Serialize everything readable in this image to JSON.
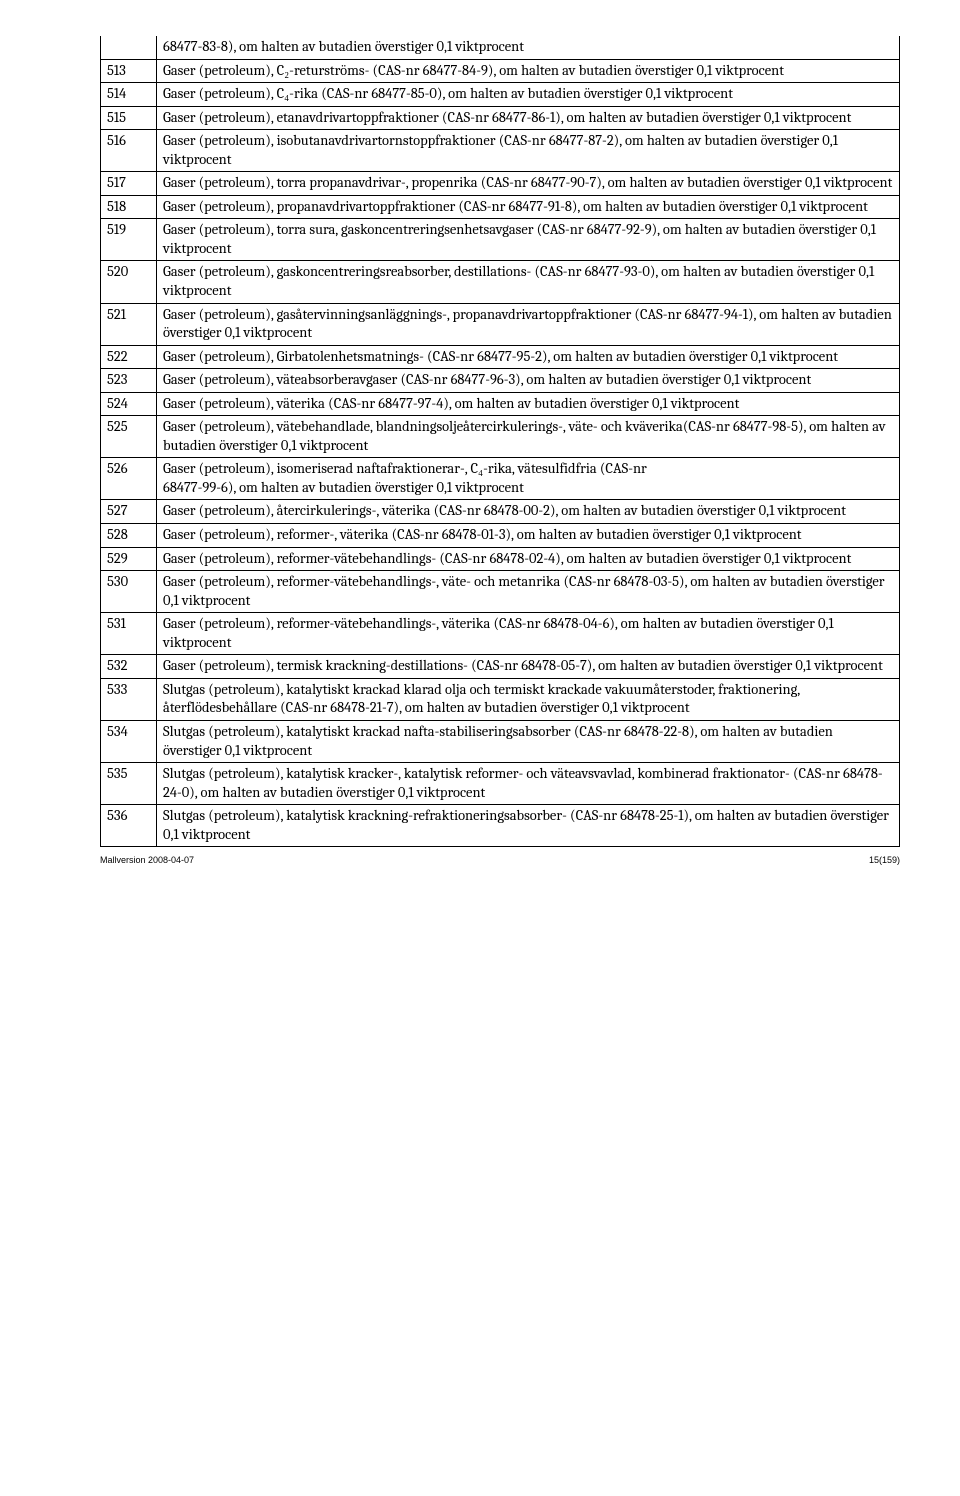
{
  "orphan": {
    "text": "68477-83-8), om halten av butadien överstiger 0,1 viktprocent"
  },
  "rows": [
    {
      "num": "513",
      "text": "Gaser (petroleum), C₂-returströms- (CAS-nr 68477-84-9), om halten av butadien överstiger 0,1 viktprocent"
    },
    {
      "num": "514",
      "text": "Gaser (petroleum), C₄-rika (CAS-nr 68477-85-0), om halten av butadien överstiger 0,1 viktprocent"
    },
    {
      "num": "515",
      "text": "Gaser (petroleum), etanavdrivartoppfraktioner (CAS-nr 68477-86-1), om halten av butadien överstiger 0,1 viktprocent"
    },
    {
      "num": "516",
      "text": "Gaser (petroleum), isobutanavdrivartornstoppfraktioner (CAS-nr 68477-87-2), om halten av butadien överstiger 0,1 viktprocent"
    },
    {
      "num": "517",
      "text": "Gaser (petroleum), torra propanavdrivar-, propenrika (CAS-nr 68477-90-7), om halten av butadien överstiger 0,1 viktprocent"
    },
    {
      "num": "518",
      "text": "Gaser (petroleum), propanavdrivartoppfraktioner (CAS-nr 68477-91-8), om halten av butadien överstiger 0,1 viktprocent"
    },
    {
      "num": "519",
      "text": "Gaser (petroleum), torra sura, gaskoncentreringsenhetsavgaser (CAS-nr 68477-92-9), om halten av butadien överstiger 0,1 viktprocent"
    },
    {
      "num": "520",
      "text": "Gaser (petroleum), gaskoncentreringsreabsorber, destillations- (CAS-nr 68477-93-0), om halten av butadien överstiger 0,1 viktprocent"
    },
    {
      "num": "521",
      "text": "Gaser (petroleum), gasåtervinningsanläggnings-, propanavdrivartoppfraktioner (CAS-nr 68477-94-1), om halten av butadien överstiger 0,1 viktprocent"
    },
    {
      "num": "522",
      "text": "Gaser (petroleum), Girbatolenhetsmatnings- (CAS-nr 68477-95-2), om halten av butadien överstiger 0,1 viktprocent"
    },
    {
      "num": "523",
      "text": "Gaser (petroleum), väteabsorberavgaser (CAS-nr 68477-96-3), om halten av butadien överstiger 0,1 viktprocent"
    },
    {
      "num": "524",
      "text": "Gaser (petroleum), väterika (CAS-nr 68477-97-4), om halten av butadien överstiger 0,1 viktprocent"
    },
    {
      "num": "525",
      "text": "Gaser (petroleum), vätebehandlade, blandningsoljeåtercirkulerings-, väte- och kväverika(CAS-nr 68477-98-5), om halten av butadien överstiger 0,1 viktprocent"
    },
    {
      "num": "526",
      "text": "Gaser (petroleum), isomeriserad naftafraktionerar-, C₄-rika, vätesulfidfria (CAS-nr\n68477-99-6), om halten av butadien överstiger 0,1 viktprocent"
    },
    {
      "num": "527",
      "text": "Gaser (petroleum), återcirkulerings-, väterika (CAS-nr 68478-00-2), om halten av butadien överstiger 0,1 viktprocent"
    },
    {
      "num": "528",
      "text": "Gaser (petroleum), reformer-, väterika (CAS-nr 68478-01-3), om halten av butadien överstiger 0,1 viktprocent"
    },
    {
      "num": "529",
      "text": "Gaser (petroleum), reformer-vätebehandlings- (CAS-nr 68478-02-4), om halten av butadien överstiger 0,1 viktprocent"
    },
    {
      "num": "530",
      "text": "Gaser (petroleum), reformer-vätebehandlings-, väte- och metanrika (CAS-nr 68478-03-5), om halten av butadien överstiger 0,1 viktprocent"
    },
    {
      "num": "531",
      "text": "Gaser (petroleum), reformer-vätebehandlings-, väterika (CAS-nr 68478-04-6), om halten av butadien överstiger 0,1 viktprocent"
    },
    {
      "num": "532",
      "text": "Gaser (petroleum), termisk krackning-destillations- (CAS-nr 68478-05-7), om halten av butadien överstiger 0,1 viktprocent"
    },
    {
      "num": "533",
      "text": "Slutgas (petroleum), katalytiskt krackad klarad olja och termiskt krackade vakuumåterstoder, fraktionering, återflödesbehållare (CAS-nr 68478-21-7), om halten av butadien överstiger 0,1 viktprocent"
    },
    {
      "num": "534",
      "text": "Slutgas (petroleum), katalytiskt krackad nafta-stabiliseringsabsorber (CAS-nr 68478-22-8), om halten av butadien överstiger 0,1 viktprocent"
    },
    {
      "num": "535",
      "text": "Slutgas (petroleum), katalytisk kracker-, katalytisk reformer- och väteavsvavlad, kombinerad fraktionator- (CAS-nr 68478-24-0), om halten av butadien överstiger 0,1 viktprocent"
    },
    {
      "num": "536",
      "text": "Slutgas (petroleum), katalytisk krackning-refraktioneringsabsorber- (CAS-nr 68478-25-1), om halten av butadien överstiger 0,1 viktprocent"
    }
  ],
  "footer": {
    "left": "Mallversion 2008-04-07",
    "right": "15(159)"
  }
}
